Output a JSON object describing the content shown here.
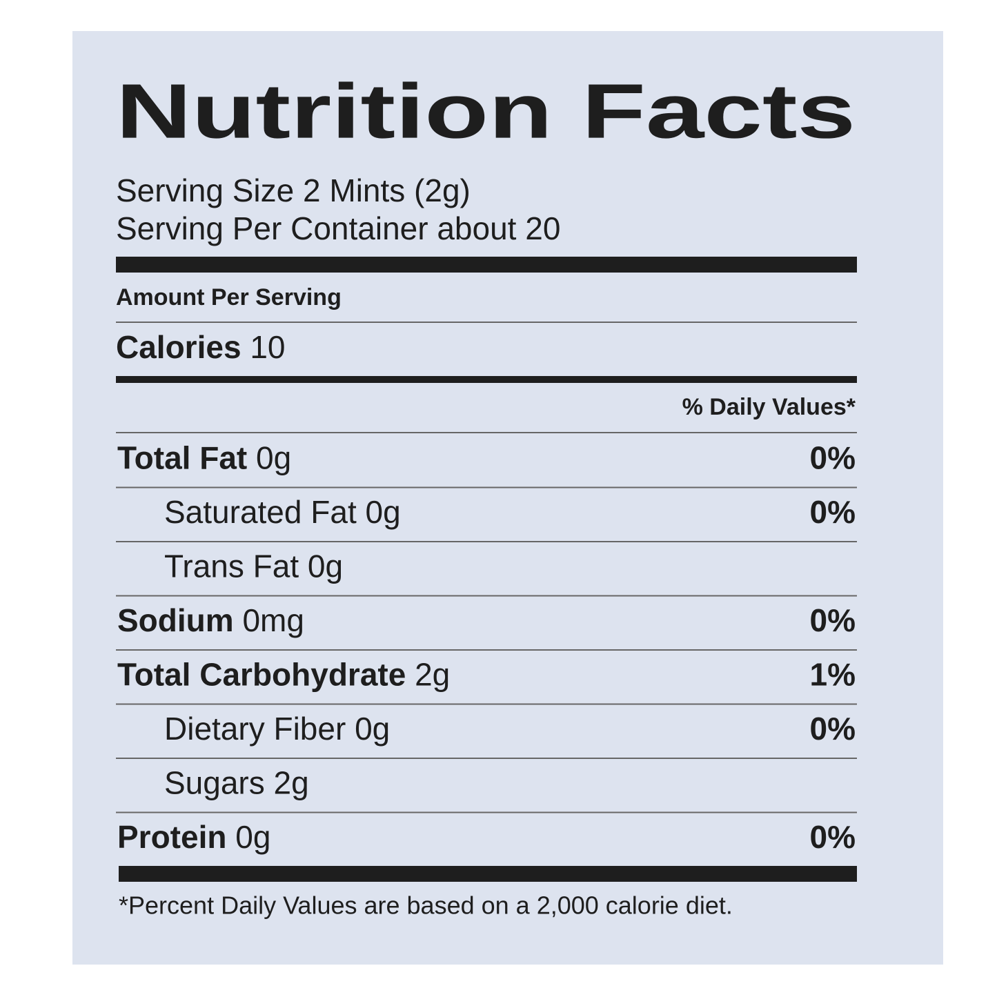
{
  "title": "Nutrition Facts",
  "serving_size": "Serving Size 2 Mints  (2g)",
  "servings_per_container": "Serving Per Container about 20",
  "amount_per_serving": "Amount Per Serving",
  "calories": {
    "label": "Calories",
    "value": "10"
  },
  "daily_values_header": "% Daily Values*",
  "nutrients": [
    {
      "name": "Total Fat",
      "amount": "0g",
      "dv": "0%",
      "bold": true
    },
    {
      "name": "Saturated Fat 0g",
      "dv": "0%",
      "bold": false
    },
    {
      "name": "Trans Fat 0g",
      "bold": false
    },
    {
      "name": "Sodium",
      "amount": "0mg",
      "dv": "0%",
      "bold": true
    },
    {
      "name": "Total Carbohydrate",
      "amount": "2g",
      "dv": "1%",
      "bold": true
    },
    {
      "name": "Dietary Fiber 0g",
      "dv": "0%",
      "bold": false
    },
    {
      "name": "Sugars 2g",
      "bold": false
    },
    {
      "name": "Protein",
      "amount": "0g",
      "dv": "0%",
      "bold": true
    }
  ],
  "footnote": "*Percent Daily Values are based on a 2,000 calorie diet."
}
